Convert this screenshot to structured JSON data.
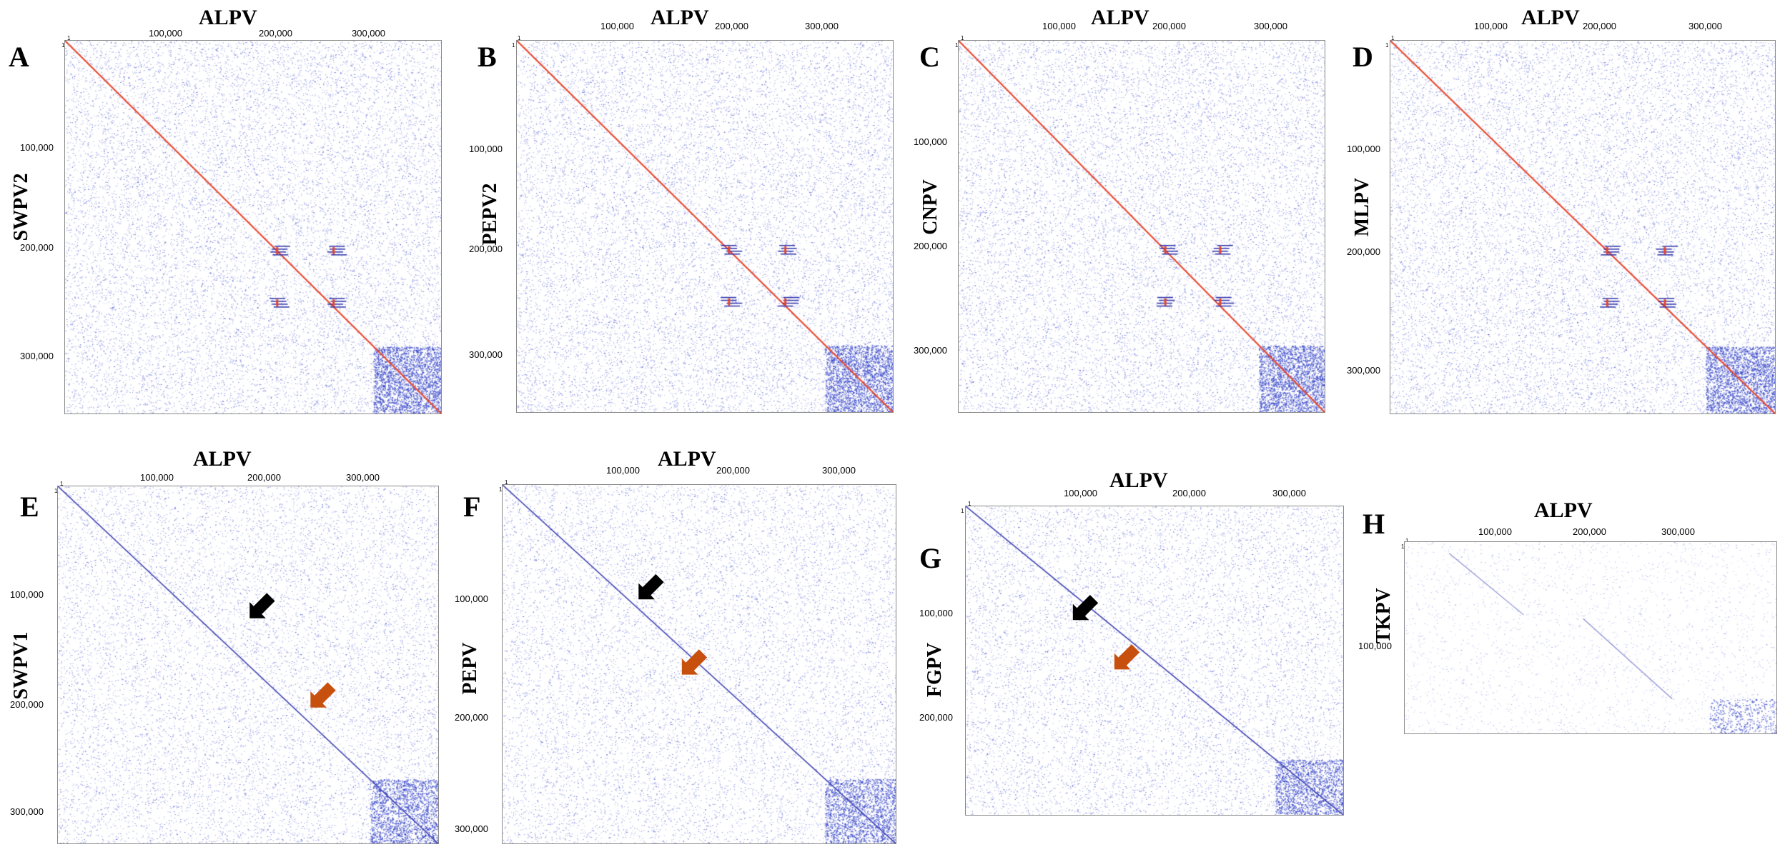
{
  "figure": {
    "panels": [
      {
        "id": "A",
        "letter": "A",
        "top_label": "ALPV",
        "side_label": "SWPV2",
        "x_ticks": [
          "1",
          "100,000",
          "200,000",
          "300,000"
        ],
        "y_ticks": [
          "1",
          "100,000",
          "200,000",
          "300,000"
        ],
        "diagonal_color": "#e8442a",
        "style": "strong"
      },
      {
        "id": "B",
        "letter": "B",
        "top_label": "ALPV",
        "side_label": "PEPV2",
        "x_ticks": [
          "1",
          "100,000",
          "200,000",
          "300,000"
        ],
        "y_ticks": [
          "1",
          "100,000",
          "200,000",
          "300,000"
        ],
        "diagonal_color": "#e8442a",
        "style": "strong"
      },
      {
        "id": "C",
        "letter": "C",
        "top_label": "ALPV",
        "side_label": "CNPV",
        "x_ticks": [
          "1",
          "100,000",
          "200,000",
          "300,000"
        ],
        "y_ticks": [
          "1",
          "100,000",
          "200,000",
          "300,000"
        ],
        "diagonal_color": "#e8442a",
        "style": "strong"
      },
      {
        "id": "D",
        "letter": "D",
        "top_label": "ALPV",
        "side_label": "MLPV",
        "x_ticks": [
          "1",
          "100,000",
          "200,000",
          "300,000"
        ],
        "y_ticks": [
          "1",
          "100,000",
          "200,000",
          "300,000"
        ],
        "diagonal_color": "#e8442a",
        "style": "strong"
      },
      {
        "id": "E",
        "letter": "E",
        "top_label": "ALPV",
        "side_label": "SWPV1",
        "x_ticks": [
          "1",
          "100,000",
          "200,000",
          "300,000"
        ],
        "y_ticks": [
          "1",
          "100,000",
          "200,000",
          "300,000"
        ],
        "diagonal_color": "#3b3fb0",
        "style": "medium",
        "arrows": [
          "black",
          "orange"
        ]
      },
      {
        "id": "F",
        "letter": "F",
        "top_label": "ALPV",
        "side_label": "PEPV",
        "x_ticks": [
          "1",
          "100,000",
          "200,000",
          "300,000"
        ],
        "y_ticks": [
          "1",
          "100,000",
          "200,000",
          "300,000"
        ],
        "diagonal_color": "#3b3fb0",
        "style": "medium",
        "arrows": [
          "black",
          "orange"
        ]
      },
      {
        "id": "G",
        "letter": "G",
        "top_label": "ALPV",
        "side_label": "FGPV",
        "x_ticks": [
          "1",
          "100,000",
          "200,000",
          "300,000"
        ],
        "y_ticks": [
          "1",
          "100,000",
          "200,000"
        ],
        "diagonal_color": "#3b3fb0",
        "style": "medium",
        "arrows": [
          "black",
          "orange"
        ]
      },
      {
        "id": "H",
        "letter": "H",
        "top_label": "ALPV",
        "side_label": "TKPV",
        "x_ticks": [
          "1",
          "100,000",
          "200,000",
          "300,000"
        ],
        "y_ticks": [
          "1",
          "100,000"
        ],
        "diagonal_color": "#5a5fc0",
        "style": "faint"
      }
    ],
    "colors": {
      "dots": "#3646c8",
      "diagonal_red": "#e8442a",
      "arrow_black": "#000000",
      "arrow_orange": "#c8500f"
    }
  }
}
